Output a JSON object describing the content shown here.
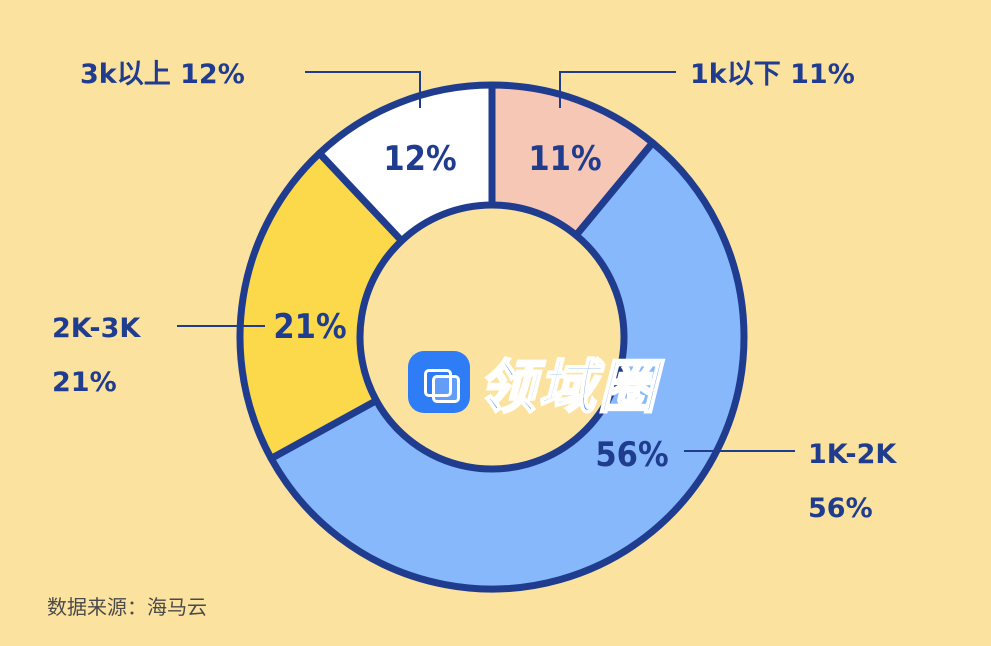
{
  "chart_data": {
    "type": "pie",
    "slices": [
      {
        "label": "1k以下",
        "value": 11,
        "inner_label": "11%",
        "outer_label": "1k以下 11%",
        "color": "#f6c7b5"
      },
      {
        "label": "1K-2K",
        "value": 56,
        "inner_label": "56%",
        "outer_label_line1": "1K-2K",
        "outer_label_line2": "56%",
        "color": "#86b8fb"
      },
      {
        "label": "2K-3K",
        "value": 21,
        "inner_label": "21%",
        "outer_label_line1": "2K-3K",
        "outer_label_line2": "21%",
        "color": "#fbd94a"
      },
      {
        "label": "3k以上",
        "value": 12,
        "inner_label": "12%",
        "outer_label": "3k以上 12%",
        "color": "#ffffff"
      }
    ],
    "donut": true,
    "stroke_color": "#1f3c8f",
    "background": "#fbe39f"
  },
  "source_text": "数据来源：海马云",
  "watermark": {
    "text": "领域圈",
    "icon": "app-logo-icon"
  }
}
